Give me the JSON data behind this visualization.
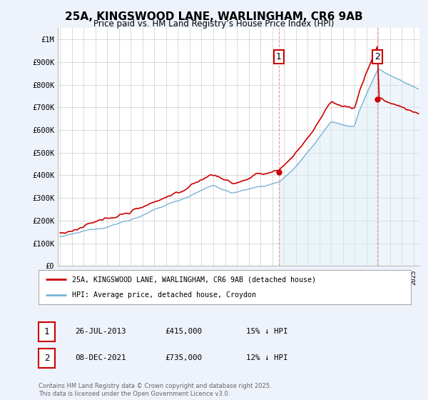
{
  "title": "25A, KINGSWOOD LANE, WARLINGHAM, CR6 9AB",
  "subtitle": "Price paid vs. HM Land Registry’s House Price Index (HPI)",
  "ylim": [
    0,
    1050000
  ],
  "yticks": [
    0,
    100000,
    200000,
    300000,
    400000,
    500000,
    600000,
    700000,
    800000,
    900000,
    1000000
  ],
  "ytick_labels": [
    "£0",
    "£100K",
    "£200K",
    "£300K",
    "£400K",
    "£500K",
    "£600K",
    "£700K",
    "£800K",
    "£900K",
    "£1M"
  ],
  "hpi_color": "#7ab3d4",
  "hpi_fill_color": "#d8eaf5",
  "price_color": "#cc0000",
  "sale1_year": 2013.56,
  "sale2_year": 2021.92,
  "sale1_price": 415000,
  "sale2_price": 735000,
  "legend_line1": "25A, KINGSWOOD LANE, WARLINGHAM, CR6 9AB (detached house)",
  "legend_line2": "HPI: Average price, detached house, Croydon",
  "footnote": "Contains HM Land Registry data © Crown copyright and database right 2025.\nThis data is licensed under the Open Government Licence v3.0.",
  "background_color": "#eef2fb",
  "plot_bg_color": "#ffffff",
  "x_start_year": 1995,
  "x_end_year": 2025
}
